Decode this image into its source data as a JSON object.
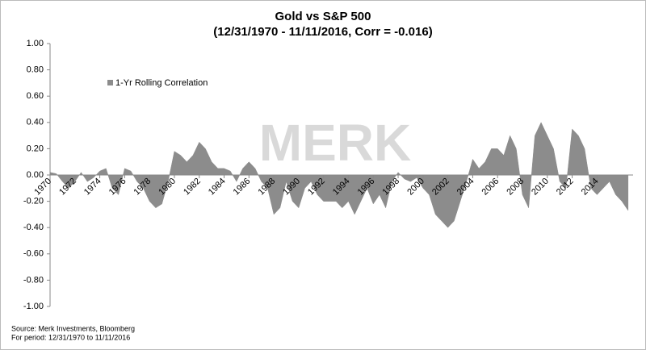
{
  "chart_data": {
    "type": "area",
    "title": "Gold vs S&P 500",
    "subtitle": "(12/31/1970 - 11/11/2016, Corr = -0.016)",
    "watermark": "MERK",
    "source": "Source: Merk Investments, Bloomberg",
    "period": "For period: 12/31/1970 to 11/11/2016",
    "x": [
      1970,
      1970.5,
      1971,
      1971.5,
      1972,
      1972.5,
      1973,
      1973.5,
      1974,
      1974.5,
      1975,
      1975.5,
      1976,
      1976.5,
      1977,
      1977.5,
      1978,
      1978.5,
      1979,
      1979.5,
      1980,
      1980.5,
      1981,
      1981.5,
      1982,
      1982.5,
      1983,
      1983.5,
      1984,
      1984.5,
      1985,
      1985.5,
      1986,
      1986.5,
      1987,
      1987.5,
      1988,
      1988.5,
      1989,
      1989.5,
      1990,
      1990.5,
      1991,
      1991.5,
      1992,
      1992.5,
      1993,
      1993.5,
      1994,
      1994.5,
      1995,
      1995.5,
      1996,
      1996.5,
      1997,
      1997.5,
      1998,
      1998.5,
      1999,
      1999.5,
      2000,
      2000.5,
      2001,
      2001.5,
      2002,
      2002.5,
      2003,
      2003.5,
      2004,
      2004.5,
      2005,
      2005.5,
      2006,
      2006.5,
      2007,
      2007.5,
      2008,
      2008.5,
      2009,
      2009.5,
      2010,
      2010.5,
      2011,
      2011.5,
      2012,
      2012.5,
      2013,
      2013.5,
      2014,
      2014.5,
      2015,
      2015.5,
      2016,
      2016.5
    ],
    "series": [
      {
        "name": "1-Yr Rolling Correlation",
        "color": "#8c8c8c",
        "values": [
          0.02,
          0.01,
          -0.05,
          -0.1,
          -0.05,
          0.02,
          -0.05,
          -0.02,
          0.03,
          0.05,
          -0.1,
          -0.15,
          0.05,
          0.03,
          -0.05,
          -0.1,
          -0.2,
          -0.25,
          -0.22,
          -0.05,
          0.18,
          0.15,
          0.1,
          0.15,
          0.25,
          0.2,
          0.1,
          0.05,
          0.05,
          0.03,
          -0.05,
          0.05,
          0.1,
          0.05,
          -0.05,
          -0.1,
          -0.3,
          -0.25,
          -0.05,
          -0.2,
          -0.25,
          -0.1,
          -0.05,
          -0.15,
          -0.2,
          -0.2,
          -0.2,
          -0.25,
          -0.2,
          -0.3,
          -0.2,
          -0.1,
          -0.22,
          -0.15,
          -0.25,
          -0.05,
          0.02,
          -0.03,
          -0.05,
          -0.02,
          -0.1,
          -0.15,
          -0.3,
          -0.35,
          -0.4,
          -0.35,
          -0.2,
          -0.05,
          0.12,
          0.05,
          0.1,
          0.2,
          0.2,
          0.15,
          0.3,
          0.2,
          -0.15,
          -0.25,
          0.3,
          0.4,
          0.3,
          0.2,
          -0.05,
          -0.1,
          0.35,
          0.3,
          0.2,
          -0.1,
          -0.15,
          -0.1,
          -0.05,
          -0.15,
          -0.2,
          -0.27
        ]
      }
    ],
    "xlim": [
      1970,
      2016.9
    ],
    "xticks": [
      1970,
      1972,
      1974,
      1976,
      1978,
      1980,
      1982,
      1984,
      1986,
      1988,
      1990,
      1992,
      1994,
      1996,
      1998,
      2000,
      2002,
      2004,
      2006,
      2008,
      2010,
      2012,
      2014
    ],
    "ylim": [
      -1,
      1
    ],
    "yticks": [
      {
        "value": 1,
        "label": "1.00"
      },
      {
        "value": 0.8,
        "label": "0.80"
      },
      {
        "value": 0.6,
        "label": "0.60"
      },
      {
        "value": 0.4,
        "label": "0.40"
      },
      {
        "value": 0.2,
        "label": "0.20"
      },
      {
        "value": 0,
        "label": "0.00"
      },
      {
        "value": -0.2,
        "label": "-0.20"
      },
      {
        "value": -0.4,
        "label": "-0.40"
      },
      {
        "value": -0.6,
        "label": "-0.60"
      },
      {
        "value": -0.8,
        "label": "-0.80"
      },
      {
        "value": -1,
        "label": "-1.00"
      }
    ],
    "grid": false
  }
}
